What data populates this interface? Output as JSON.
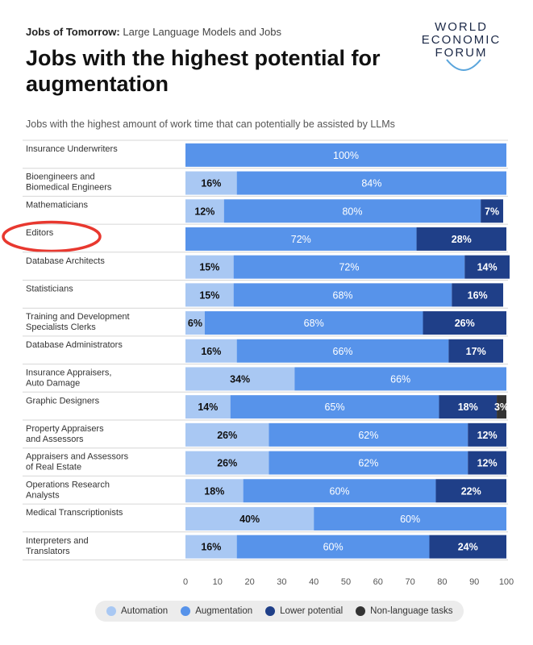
{
  "header": {
    "kicker_bold": "Jobs of Tomorrow:",
    "kicker_rest": " Large Language Models and Jobs",
    "title": "Jobs with the highest potential for augmentation",
    "subtitle": "Jobs with the highest amount of work time that can potentially be assisted by LLMs"
  },
  "logo": {
    "line1": "WORLD",
    "line2": "ECONOMIC",
    "line3": "FORUM"
  },
  "chart_data": {
    "type": "bar",
    "orientation": "horizontal",
    "stacked": true,
    "categories": [
      [
        "Insurance Underwriters"
      ],
      [
        "Bioengineers and",
        "Biomedical Engineers"
      ],
      [
        "Mathematicians"
      ],
      [
        "Editors"
      ],
      [
        "Database Architects"
      ],
      [
        "Statisticians"
      ],
      [
        "Training and Development",
        "Specialists Clerks"
      ],
      [
        "Database Administrators"
      ],
      [
        "Insurance Appraisers,",
        "Auto Damage"
      ],
      [
        "Graphic Designers"
      ],
      [
        "Property Appraisers",
        "and Assessors"
      ],
      [
        "Appraisers and Assessors",
        "of Real Estate"
      ],
      [
        "Operations Research",
        "Analysts"
      ],
      [
        "Medical Transcriptionists"
      ],
      [
        "Interpreters and",
        "Translators"
      ]
    ],
    "series": [
      {
        "name": "Automation",
        "color": "#a9c8f3",
        "values": [
          0,
          16,
          12,
          0,
          15,
          15,
          6,
          16,
          34,
          14,
          26,
          26,
          18,
          40,
          16
        ]
      },
      {
        "name": "Augmentation",
        "color": "#5793ea",
        "values": [
          100,
          84,
          80,
          72,
          72,
          68,
          68,
          66,
          66,
          65,
          62,
          62,
          60,
          60,
          60
        ]
      },
      {
        "name": "Lower potential",
        "color": "#1f3f88",
        "values": [
          0,
          0,
          7,
          28,
          14,
          16,
          26,
          17,
          0,
          18,
          12,
          12,
          22,
          0,
          24
        ]
      },
      {
        "name": "Non-language tasks",
        "color": "#333333",
        "values": [
          0,
          0,
          0,
          0,
          0,
          0,
          0,
          0,
          0,
          3,
          0,
          0,
          0,
          0,
          0
        ]
      }
    ],
    "xlim": [
      0,
      100
    ],
    "xticks": [
      0,
      10,
      20,
      30,
      40,
      50,
      60,
      70,
      80,
      90,
      100
    ],
    "grid": false,
    "legend": "bottom",
    "highlight": {
      "category": "Editors",
      "color": "#e8382f"
    }
  }
}
